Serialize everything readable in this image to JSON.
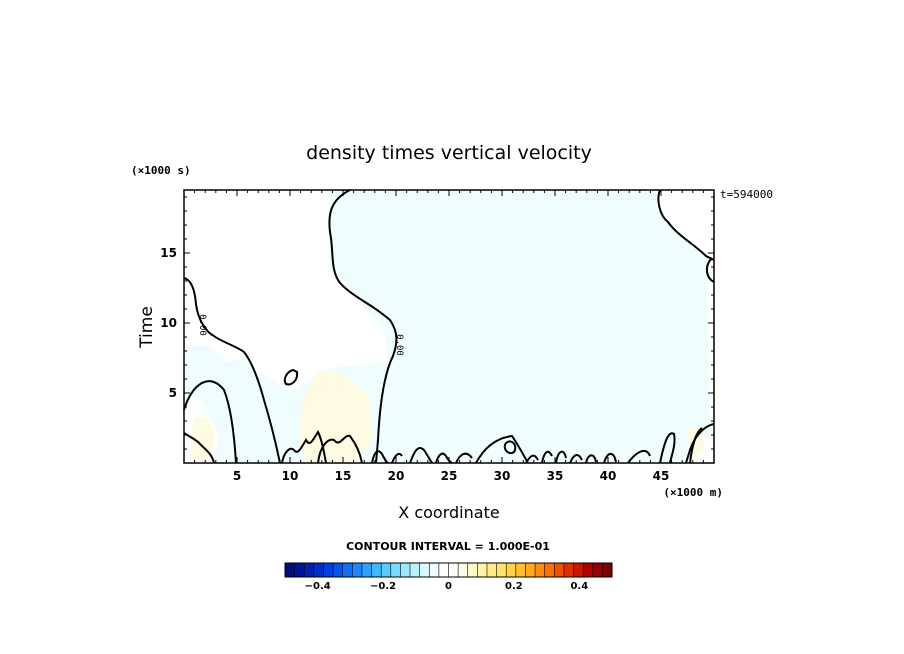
{
  "chart_data": {
    "type": "heatmap",
    "title": "density times vertical velocity",
    "xlabel": "X coordinate",
    "ylabel": "Time",
    "x_unit": "(×1000 m)",
    "y_unit": "(×1000 s)",
    "xlim": [
      0,
      50
    ],
    "ylim": [
      0,
      19.5
    ],
    "x_ticks": [
      5,
      10,
      15,
      20,
      25,
      30,
      35,
      40,
      45
    ],
    "y_ticks": [
      5,
      10,
      15
    ],
    "time_label": "t=594000",
    "contour_interval_text": "CONTOUR INTERVAL = 1.000E-01",
    "contour_level": "0.00",
    "colorbar": {
      "range": [
        -0.5,
        0.5
      ],
      "tick_values": [
        -0.4,
        -0.2,
        0,
        0.2,
        0.4
      ],
      "tick_labels": [
        "−0.4",
        "−0.2",
        "0",
        "0.2",
        "0.4"
      ],
      "colors": [
        "#000c7f",
        "#001496",
        "#0020b0",
        "#002cc8",
        "#0040e0",
        "#0058f0",
        "#1070f8",
        "#2088ff",
        "#30a0ff",
        "#40b8ff",
        "#58ccff",
        "#78dcff",
        "#98e8ff",
        "#b8f2ff",
        "#d8faff",
        "#eefdff",
        "#ffffff",
        "#ffffff",
        "#fffde8",
        "#fffacc",
        "#fff5a8",
        "#ffee88",
        "#ffe468",
        "#ffd448",
        "#ffc030",
        "#ffa820",
        "#ff8c10",
        "#ff7000",
        "#f05000",
        "#e03000",
        "#c81800",
        "#b00000",
        "#980000",
        "#800000"
      ]
    }
  }
}
